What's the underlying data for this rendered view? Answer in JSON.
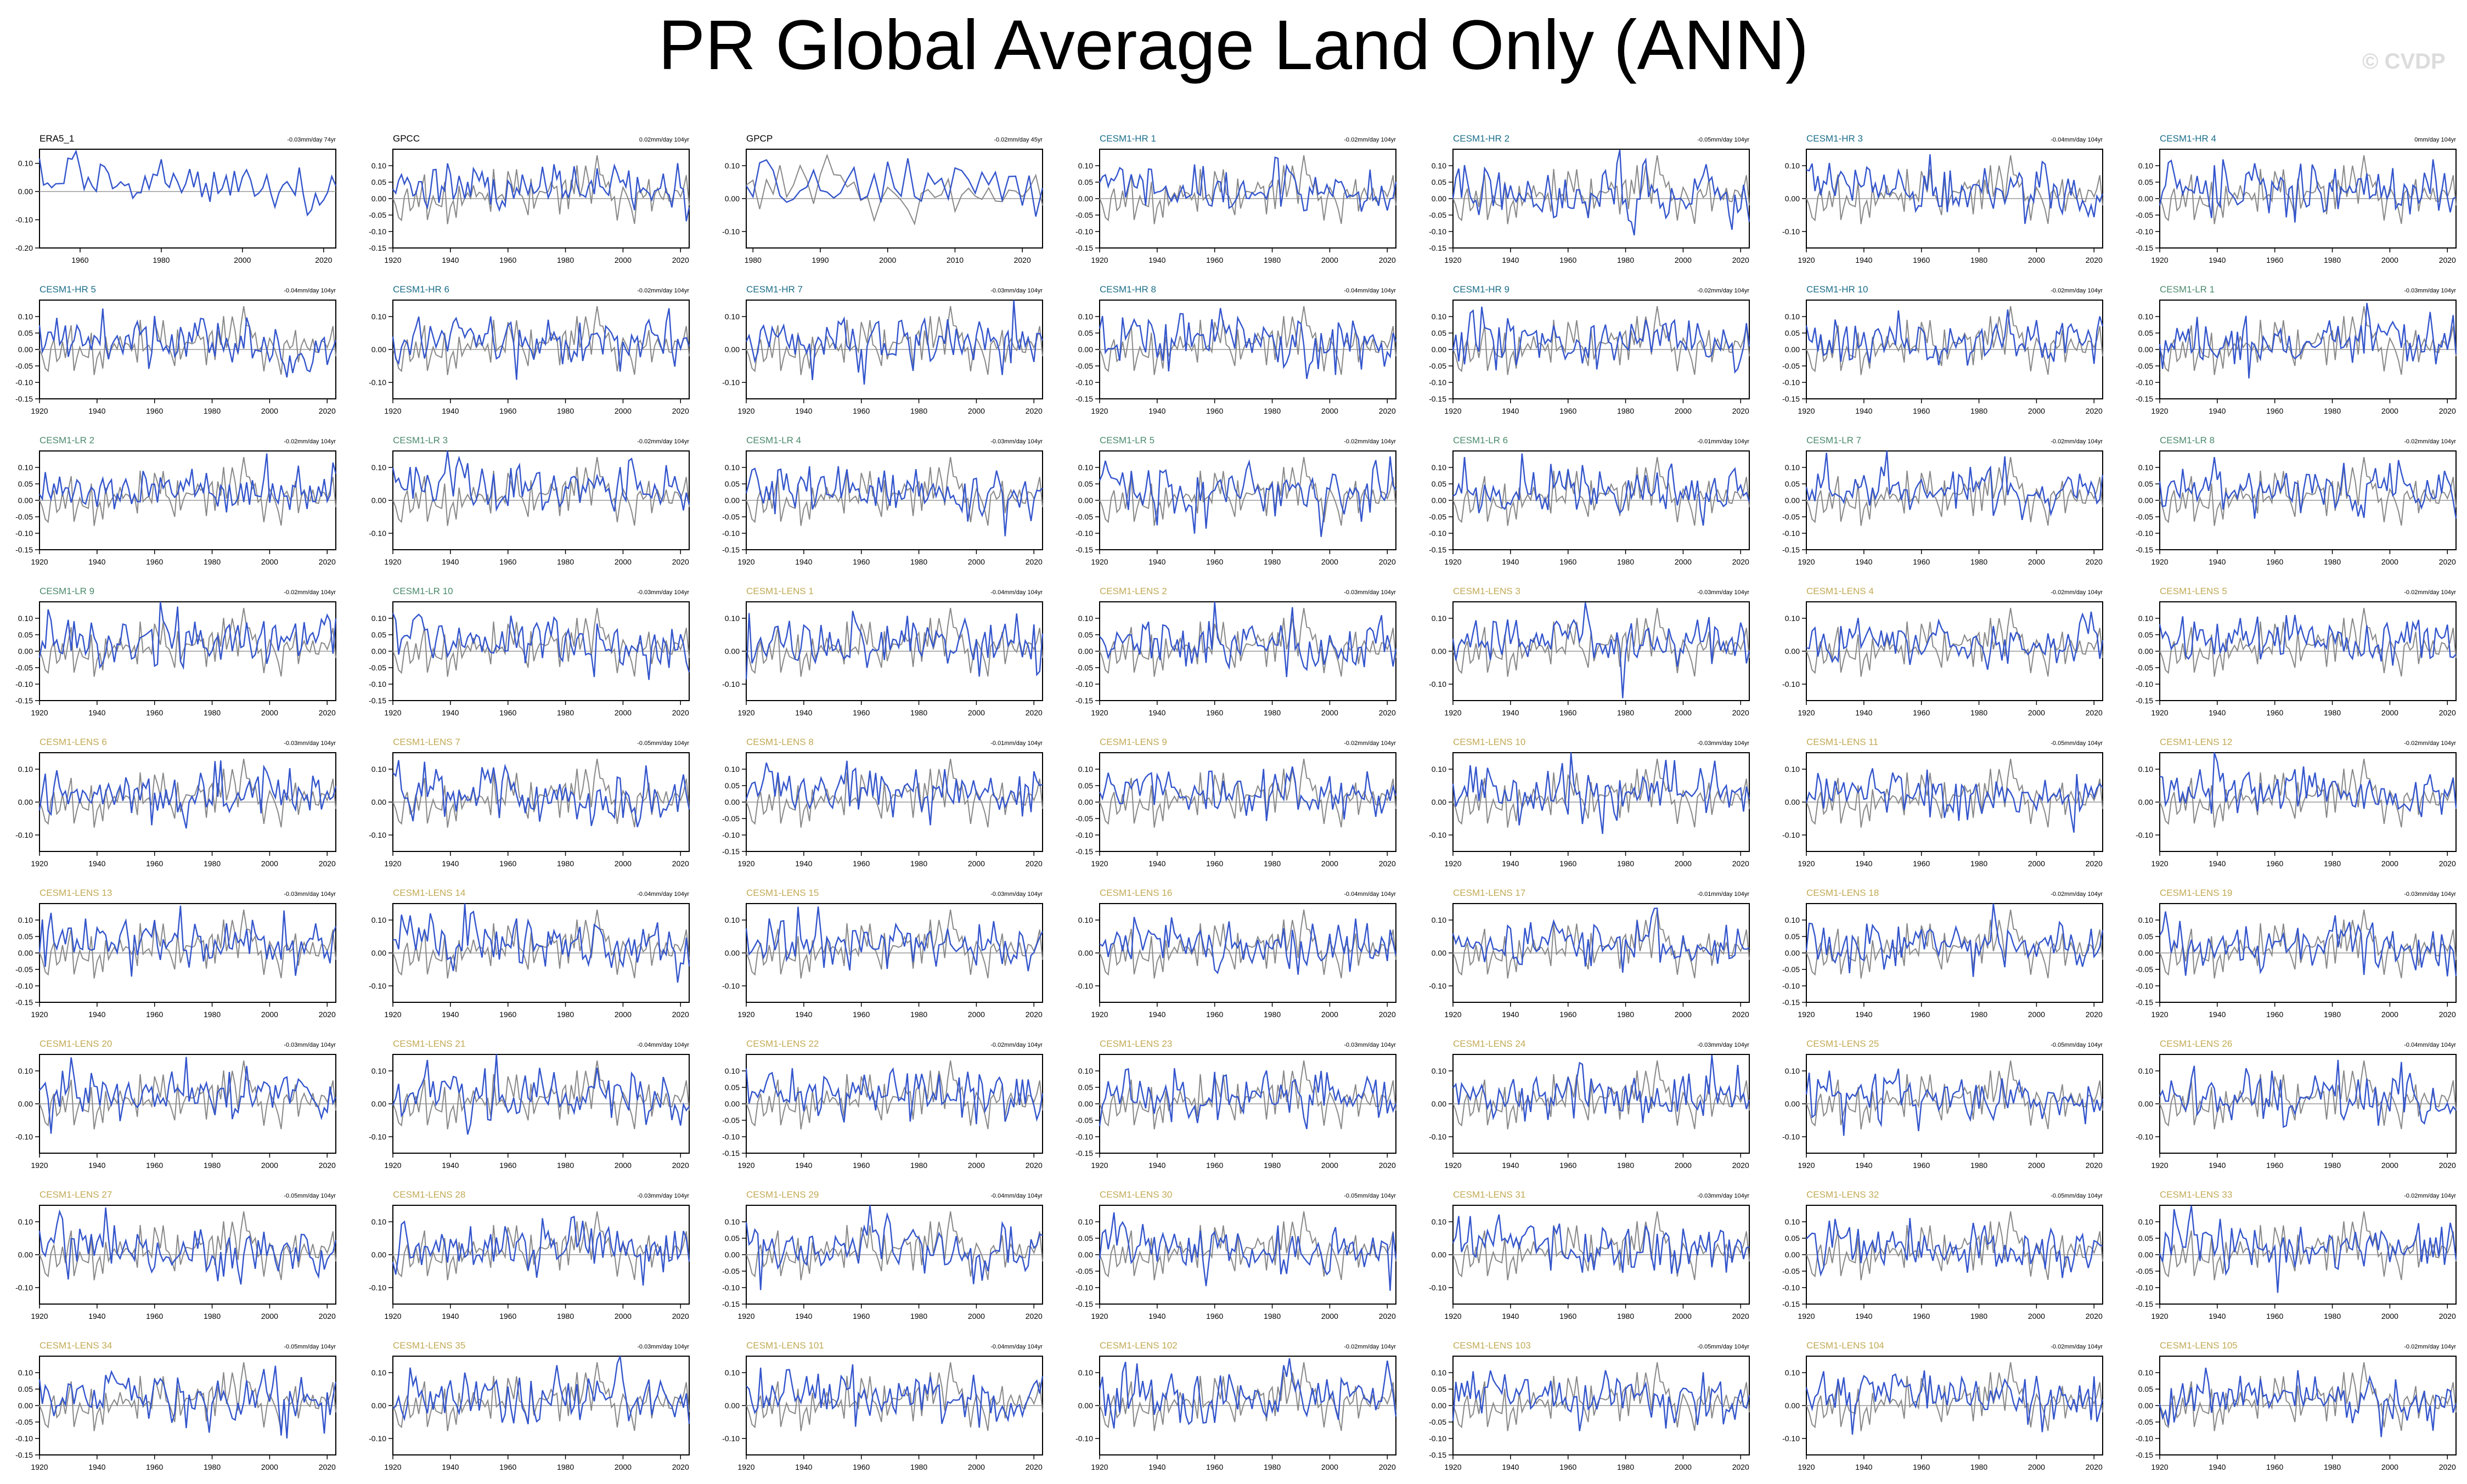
{
  "title": "PR Global Average Land Only (ANN)",
  "watermark": "© CVDP",
  "colors": {
    "background": "#ffffff",
    "model_line": "#3355cc",
    "reference_line": "#888888",
    "zero_line": "#999999",
    "title_obs": "#000000",
    "title_hr": "#1a6e8a",
    "title_lr": "#4a8a6a",
    "title_lens": "#c2aa55"
  },
  "chart_data": {
    "type": "line",
    "layout": "grid of 9 rows x 7 columns of small multiples",
    "series_legend": [
      "model/observation timeseries (blue)",
      "reference observation (gray)"
    ],
    "panels": [
      {
        "name": "ERA5_1",
        "group": "obs",
        "trend": "-0.03mm/day 74yr",
        "xlim": [
          1950,
          2023
        ],
        "xticks": [
          1960,
          1980,
          2000,
          2020
        ],
        "ylim": [
          -0.2,
          0.15
        ],
        "yticks": [
          "0.10",
          "0.00",
          "-0.10",
          "-0.20"
        ],
        "ref": false
      },
      {
        "name": "GPCC",
        "group": "obs",
        "trend": "0.02mm/day 104yr",
        "xlim": [
          1920,
          2023
        ],
        "xticks": [
          1920,
          1940,
          1960,
          1980,
          2000,
          2020
        ],
        "ylim": [
          -0.15,
          0.15
        ],
        "yticks": [
          "0.10",
          "0.05",
          "0.00",
          "-0.05",
          "-0.10",
          "-0.15"
        ],
        "ref": true
      },
      {
        "name": "GPCP",
        "group": "obs",
        "trend": "-0.02mm/day 45yr",
        "xlim": [
          1979,
          2023
        ],
        "xticks": [
          1980,
          1990,
          2000,
          2010,
          2020
        ],
        "ylim": [
          -0.15,
          0.15
        ],
        "yticks": [
          "0.10",
          "0.00",
          "-0.10"
        ],
        "ref": true
      },
      {
        "name": "CESM1-HR 1",
        "group": "hr",
        "trend": "-0.02mm/day 104yr",
        "ytype": "b"
      },
      {
        "name": "CESM1-HR 2",
        "group": "hr",
        "trend": "-0.05mm/day 104yr",
        "ytype": "b"
      },
      {
        "name": "CESM1-HR 3",
        "group": "hr",
        "trend": "-0.04mm/day 104yr",
        "ytype": "a"
      },
      {
        "name": "CESM1-HR 4",
        "group": "hr",
        "trend": "0mm/day 104yr",
        "ytype": "b"
      },
      {
        "name": "CESM1-HR 5",
        "group": "hr",
        "trend": "-0.04mm/day 104yr",
        "ytype": "b"
      },
      {
        "name": "CESM1-HR 6",
        "group": "hr",
        "trend": "-0.02mm/day 104yr",
        "ytype": "a"
      },
      {
        "name": "CESM1-HR 7",
        "group": "hr",
        "trend": "-0.03mm/day 104yr",
        "ytype": "a"
      },
      {
        "name": "CESM1-HR 8",
        "group": "hr",
        "trend": "-0.04mm/day 104yr",
        "ytype": "b"
      },
      {
        "name": "CESM1-HR 9",
        "group": "hr",
        "trend": "-0.02mm/day 104yr",
        "ytype": "b"
      },
      {
        "name": "CESM1-HR 10",
        "group": "hr",
        "trend": "-0.02mm/day 104yr",
        "ytype": "b"
      },
      {
        "name": "CESM1-LR 1",
        "group": "lr",
        "trend": "-0.03mm/day 104yr",
        "ytype": "b"
      },
      {
        "name": "CESM1-LR 2",
        "group": "lr",
        "trend": "-0.02mm/day 104yr",
        "ytype": "b"
      },
      {
        "name": "CESM1-LR 3",
        "group": "lr",
        "trend": "-0.02mm/day 104yr",
        "ytype": "a"
      },
      {
        "name": "CESM1-LR 4",
        "group": "lr",
        "trend": "-0.03mm/day 104yr",
        "ytype": "b"
      },
      {
        "name": "CESM1-LR 5",
        "group": "lr",
        "trend": "-0.02mm/day 104yr",
        "ytype": "b"
      },
      {
        "name": "CESM1-LR 6",
        "group": "lr",
        "trend": "-0.01mm/day 104yr",
        "ytype": "b"
      },
      {
        "name": "CESM1-LR 7",
        "group": "lr",
        "trend": "-0.02mm/day 104yr",
        "ytype": "b"
      },
      {
        "name": "CESM1-LR 8",
        "group": "lr",
        "trend": "-0.02mm/day 104yr",
        "ytype": "b"
      },
      {
        "name": "CESM1-LR 9",
        "group": "lr",
        "trend": "-0.02mm/day 104yr",
        "ytype": "b"
      },
      {
        "name": "CESM1-LR 10",
        "group": "lr",
        "trend": "-0.03mm/day 104yr",
        "ytype": "b"
      },
      {
        "name": "CESM1-LENS 1",
        "group": "lens",
        "trend": "-0.04mm/day 104yr",
        "ytype": "a"
      },
      {
        "name": "CESM1-LENS 2",
        "group": "lens",
        "trend": "-0.03mm/day 104yr",
        "ytype": "b"
      },
      {
        "name": "CESM1-LENS 3",
        "group": "lens",
        "trend": "-0.03mm/day 104yr",
        "ytype": "a"
      },
      {
        "name": "CESM1-LENS 4",
        "group": "lens",
        "trend": "-0.02mm/day 104yr",
        "ytype": "a"
      },
      {
        "name": "CESM1-LENS 5",
        "group": "lens",
        "trend": "-0.02mm/day 104yr",
        "ytype": "b"
      },
      {
        "name": "CESM1-LENS 6",
        "group": "lens",
        "trend": "-0.03mm/day 104yr",
        "ytype": "a"
      },
      {
        "name": "CESM1-LENS 7",
        "group": "lens",
        "trend": "-0.05mm/day 104yr",
        "ytype": "a"
      },
      {
        "name": "CESM1-LENS 8",
        "group": "lens",
        "trend": "-0.01mm/day 104yr",
        "ytype": "b"
      },
      {
        "name": "CESM1-LENS 9",
        "group": "lens",
        "trend": "-0.02mm/day 104yr",
        "ytype": "b"
      },
      {
        "name": "CESM1-LENS 10",
        "group": "lens",
        "trend": "-0.03mm/day 104yr",
        "ytype": "a"
      },
      {
        "name": "CESM1-LENS 11",
        "group": "lens",
        "trend": "-0.05mm/day 104yr",
        "ytype": "a"
      },
      {
        "name": "CESM1-LENS 12",
        "group": "lens",
        "trend": "-0.02mm/day 104yr",
        "ytype": "a"
      },
      {
        "name": "CESM1-LENS 13",
        "group": "lens",
        "trend": "-0.03mm/day 104yr",
        "ytype": "b"
      },
      {
        "name": "CESM1-LENS 14",
        "group": "lens",
        "trend": "-0.04mm/day 104yr",
        "ytype": "a"
      },
      {
        "name": "CESM1-LENS 15",
        "group": "lens",
        "trend": "-0.03mm/day 104yr",
        "ytype": "a"
      },
      {
        "name": "CESM1-LENS 16",
        "group": "lens",
        "trend": "-0.04mm/day 104yr",
        "ytype": "a"
      },
      {
        "name": "CESM1-LENS 17",
        "group": "lens",
        "trend": "-0.01mm/day 104yr",
        "ytype": "a"
      },
      {
        "name": "CESM1-LENS 18",
        "group": "lens",
        "trend": "-0.02mm/day 104yr",
        "ytype": "b"
      },
      {
        "name": "CESM1-LENS 19",
        "group": "lens",
        "trend": "-0.03mm/day 104yr",
        "ytype": "b"
      },
      {
        "name": "CESM1-LENS 20",
        "group": "lens",
        "trend": "-0.03mm/day 104yr",
        "ytype": "a"
      },
      {
        "name": "CESM1-LENS 21",
        "group": "lens",
        "trend": "-0.04mm/day 104yr",
        "ytype": "a"
      },
      {
        "name": "CESM1-LENS 22",
        "group": "lens",
        "trend": "-0.02mm/day 104yr",
        "ytype": "b"
      },
      {
        "name": "CESM1-LENS 23",
        "group": "lens",
        "trend": "-0.03mm/day 104yr",
        "ytype": "b"
      },
      {
        "name": "CESM1-LENS 24",
        "group": "lens",
        "trend": "-0.03mm/day 104yr",
        "ytype": "a"
      },
      {
        "name": "CESM1-LENS 25",
        "group": "lens",
        "trend": "-0.05mm/day 104yr",
        "ytype": "a"
      },
      {
        "name": "CESM1-LENS 26",
        "group": "lens",
        "trend": "-0.04mm/day 104yr",
        "ytype": "a"
      },
      {
        "name": "CESM1-LENS 27",
        "group": "lens",
        "trend": "-0.05mm/day 104yr",
        "ytype": "a"
      },
      {
        "name": "CESM1-LENS 28",
        "group": "lens",
        "trend": "-0.03mm/day 104yr",
        "ytype": "a"
      },
      {
        "name": "CESM1-LENS 29",
        "group": "lens",
        "trend": "-0.04mm/day 104yr",
        "ytype": "b"
      },
      {
        "name": "CESM1-LENS 30",
        "group": "lens",
        "trend": "-0.05mm/day 104yr",
        "ytype": "b"
      },
      {
        "name": "CESM1-LENS 31",
        "group": "lens",
        "trend": "-0.03mm/day 104yr",
        "ytype": "a"
      },
      {
        "name": "CESM1-LENS 32",
        "group": "lens",
        "trend": "-0.05mm/day 104yr",
        "ytype": "b"
      },
      {
        "name": "CESM1-LENS 33",
        "group": "lens",
        "trend": "-0.02mm/day 104yr",
        "ytype": "b"
      },
      {
        "name": "CESM1-LENS 34",
        "group": "lens",
        "trend": "-0.05mm/day 104yr",
        "ytype": "b"
      },
      {
        "name": "CESM1-LENS 35",
        "group": "lens",
        "trend": "-0.03mm/day 104yr",
        "ytype": "a"
      },
      {
        "name": "CESM1-LENS 101",
        "group": "lens",
        "trend": "-0.04mm/day 104yr",
        "ytype": "a"
      },
      {
        "name": "CESM1-LENS 102",
        "group": "lens",
        "trend": "-0.02mm/day 104yr",
        "ytype": "a"
      },
      {
        "name": "CESM1-LENS 103",
        "group": "lens",
        "trend": "-0.05mm/day 104yr",
        "ytype": "b"
      },
      {
        "name": "CESM1-LENS 104",
        "group": "lens",
        "trend": "-0.02mm/day 104yr",
        "ytype": "a"
      },
      {
        "name": "CESM1-LENS 105",
        "group": "lens",
        "trend": "-0.02mm/day 104yr",
        "ytype": "b"
      }
    ],
    "model_defaults": {
      "xlim": [
        1920,
        2023
      ],
      "xticks": [
        1920,
        1940,
        1960,
        1980,
        2000,
        2020
      ],
      "ylim": [
        -0.15,
        0.15
      ],
      "yticks_a": [
        "0.10",
        "0.00",
        "-0.10"
      ],
      "yticks_b": [
        "0.10",
        "0.05",
        "0.00",
        "-0.05",
        "-0.10",
        "-0.15"
      ],
      "ref": true
    },
    "values_note_omitted": true
  }
}
